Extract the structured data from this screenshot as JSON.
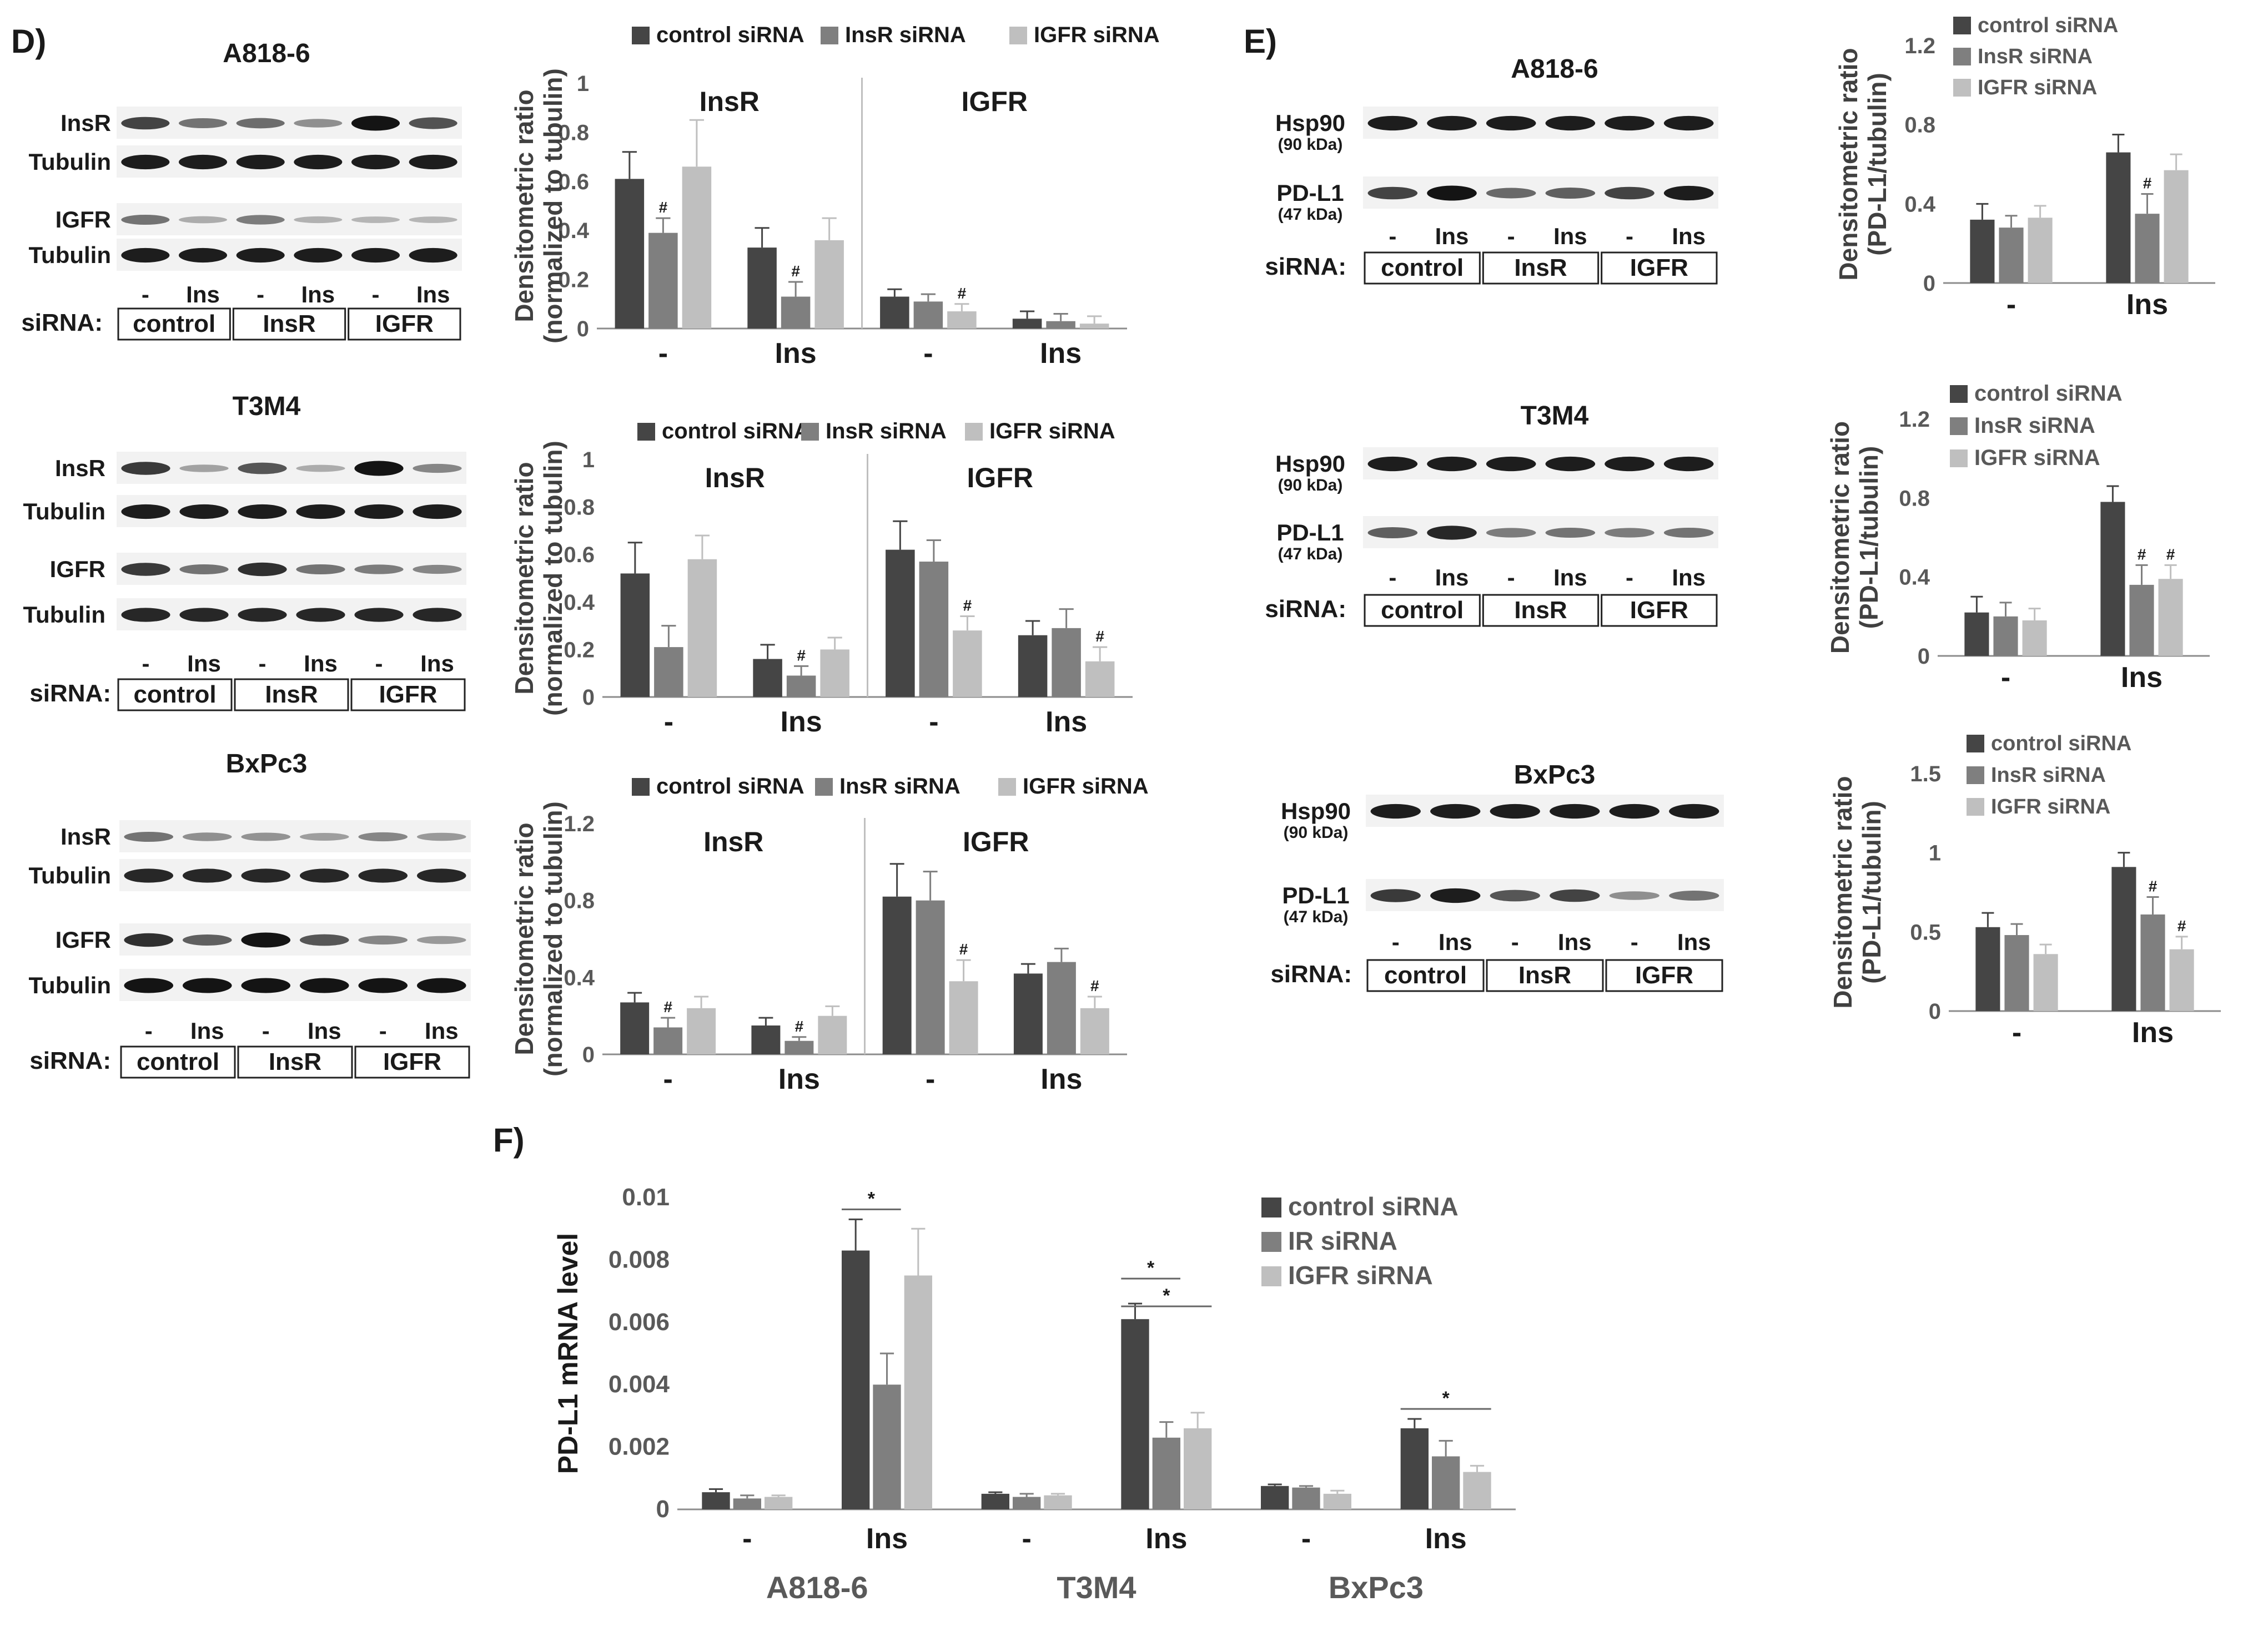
{
  "figure": {
    "panels": {
      "D": "D)",
      "E": "E)",
      "F": "F)"
    }
  },
  "colors": {
    "control": "#454545",
    "insr": "#7f7f7f",
    "igfr": "#bfbfbf",
    "text": "#1a1a1a",
    "axis_text": "#595959"
  },
  "blots_D": [
    {
      "cell_line": "A818-6",
      "rows": [
        {
          "label": "InsR",
          "bands": [
            0.7,
            0.45,
            0.48,
            0.3,
            0.95,
            0.62
          ]
        },
        {
          "label": "Tubulin",
          "bands": [
            0.9,
            0.9,
            0.9,
            0.9,
            0.9,
            0.9
          ]
        },
        {
          "label": "IGFR",
          "bands": [
            0.45,
            0.15,
            0.4,
            0.12,
            0.1,
            0.1
          ]
        },
        {
          "label": "Tubulin",
          "bands": [
            0.9,
            0.9,
            0.9,
            0.9,
            0.9,
            0.9
          ]
        }
      ],
      "lanes": [
        "-",
        "Ins",
        "-",
        "Ins",
        "-",
        "Ins"
      ],
      "sirna_label": "siRNA:",
      "groups": [
        "control",
        "InsR",
        "IGFR"
      ]
    },
    {
      "cell_line": "T3M4",
      "rows": [
        {
          "label": "InsR",
          "bands": [
            0.75,
            0.2,
            0.6,
            0.15,
            0.95,
            0.35
          ]
        },
        {
          "label": "Tubulin",
          "bands": [
            0.9,
            0.9,
            0.9,
            0.9,
            0.9,
            0.9
          ]
        },
        {
          "label": "IGFR",
          "bands": [
            0.75,
            0.45,
            0.8,
            0.45,
            0.4,
            0.35
          ]
        },
        {
          "label": "Tubulin",
          "bands": [
            0.85,
            0.85,
            0.85,
            0.85,
            0.85,
            0.85
          ]
        }
      ],
      "lanes": [
        "-",
        "Ins",
        "-",
        "Ins",
        "-",
        "Ins"
      ],
      "sirna_label": "siRNA:",
      "groups": [
        "control",
        "InsR",
        "IGFR"
      ]
    },
    {
      "cell_line": "BxPc3",
      "rows": [
        {
          "label": "InsR",
          "bands": [
            0.45,
            0.3,
            0.28,
            0.22,
            0.35,
            0.25
          ]
        },
        {
          "label": "Tubulin",
          "bands": [
            0.85,
            0.85,
            0.85,
            0.85,
            0.85,
            0.85
          ]
        },
        {
          "label": "IGFR",
          "bands": [
            0.8,
            0.55,
            0.95,
            0.6,
            0.35,
            0.25
          ]
        },
        {
          "label": "Tubulin",
          "bands": [
            0.95,
            0.95,
            0.95,
            0.95,
            0.95,
            0.95
          ]
        }
      ],
      "lanes": [
        "-",
        "Ins",
        "-",
        "Ins",
        "-",
        "Ins"
      ],
      "sirna_label": "siRNA:",
      "groups": [
        "control",
        "InsR",
        "IGFR"
      ]
    }
  ],
  "blots_E": [
    {
      "cell_line": "A818-6",
      "rows": [
        {
          "label": "Hsp90",
          "sub": "(90 kDa)",
          "bands": [
            0.9,
            0.9,
            0.9,
            0.9,
            0.9,
            0.9
          ]
        },
        {
          "label": "PD-L1",
          "sub": "(47 kDa)",
          "bands": [
            0.7,
            0.95,
            0.5,
            0.55,
            0.7,
            0.9
          ]
        }
      ],
      "lanes": [
        "-",
        "Ins",
        "-",
        "Ins",
        "-",
        "Ins"
      ],
      "sirna_label": "siRNA:",
      "groups": [
        "control",
        "InsR",
        "IGFR"
      ]
    },
    {
      "cell_line": "T3M4",
      "rows": [
        {
          "label": "Hsp90",
          "sub": "(90 kDa)",
          "bands": [
            0.9,
            0.9,
            0.9,
            0.9,
            0.9,
            0.9
          ]
        },
        {
          "label": "PD-L1",
          "sub": "(47 kDa)",
          "bands": [
            0.55,
            0.85,
            0.4,
            0.45,
            0.4,
            0.45
          ]
        }
      ],
      "lanes": [
        "-",
        "Ins",
        "-",
        "Ins",
        "-",
        "Ins"
      ],
      "sirna_label": "siRNA:",
      "groups": [
        "control",
        "InsR",
        "IGFR"
      ]
    },
    {
      "cell_line": "BxPc3",
      "rows": [
        {
          "label": "Hsp90",
          "sub": "(90 kDa)",
          "bands": [
            0.9,
            0.9,
            0.9,
            0.9,
            0.9,
            0.9
          ]
        },
        {
          "label": "PD-L1",
          "sub": "(47 kDa)",
          "bands": [
            0.75,
            0.9,
            0.6,
            0.7,
            0.3,
            0.45
          ]
        }
      ],
      "lanes": [
        "-",
        "Ins",
        "-",
        "Ins",
        "-",
        "Ins"
      ],
      "sirna_label": "siRNA:",
      "groups": [
        "control",
        "InsR",
        "IGFR"
      ]
    }
  ],
  "chart_data": [
    {
      "id": "D-A818-6",
      "type": "bar",
      "cell_line": "A818-6",
      "ylabel": "Densitometric ratio",
      "ylabel2": "(normalized to tubulin)",
      "ylim": [
        0,
        1
      ],
      "yticks": [
        "0",
        "0.2",
        "0.4",
        "0.6",
        "0.8",
        "1"
      ],
      "facets": [
        "InsR",
        "IGFR"
      ],
      "categories": [
        "-",
        "Ins",
        "-",
        "Ins"
      ],
      "legend": [
        "control siRNA",
        "InsR siRNA",
        "IGFR siRNA"
      ],
      "series": [
        {
          "name": "control siRNA",
          "values": [
            0.61,
            0.33,
            0.13,
            0.04
          ],
          "errors": [
            0.11,
            0.08,
            0.03,
            0.03
          ]
        },
        {
          "name": "InsR siRNA",
          "values": [
            0.39,
            0.13,
            0.11,
            0.03
          ],
          "errors": [
            0.06,
            0.06,
            0.03,
            0.03
          ]
        },
        {
          "name": "IGFR siRNA",
          "values": [
            0.66,
            0.36,
            0.07,
            0.02
          ],
          "errors": [
            0.19,
            0.09,
            0.03,
            0.03
          ]
        }
      ],
      "annotations": [
        {
          "series": 1,
          "index": 0,
          "text": "#"
        },
        {
          "series": 1,
          "index": 1,
          "text": "#"
        },
        {
          "series": 2,
          "index": 2,
          "text": "#"
        }
      ]
    },
    {
      "id": "D-T3M4",
      "type": "bar",
      "cell_line": "T3M4",
      "ylabel": "Densitometric ratio",
      "ylabel2": "(normalized to tubulin)",
      "ylim": [
        0,
        1
      ],
      "yticks": [
        "0",
        "0.2",
        "0.4",
        "0.6",
        "0.8",
        "1"
      ],
      "facets": [
        "InsR",
        "IGFR"
      ],
      "categories": [
        "-",
        "Ins",
        "-",
        "Ins"
      ],
      "legend": [
        "control siRNA",
        "InsR siRNA",
        "IGFR siRNA"
      ],
      "series": [
        {
          "name": "control siRNA",
          "values": [
            0.52,
            0.16,
            0.62,
            0.26
          ],
          "errors": [
            0.13,
            0.06,
            0.12,
            0.06
          ]
        },
        {
          "name": "InsR siRNA",
          "values": [
            0.21,
            0.09,
            0.57,
            0.29
          ],
          "errors": [
            0.09,
            0.04,
            0.09,
            0.08
          ]
        },
        {
          "name": "IGFR siRNA",
          "values": [
            0.58,
            0.2,
            0.28,
            0.15
          ],
          "errors": [
            0.1,
            0.05,
            0.06,
            0.06
          ]
        }
      ],
      "annotations": [
        {
          "series": 1,
          "index": 1,
          "text": "#"
        },
        {
          "series": 2,
          "index": 2,
          "text": "#"
        },
        {
          "series": 2,
          "index": 3,
          "text": "#"
        }
      ]
    },
    {
      "id": "D-BxPc3",
      "type": "bar",
      "cell_line": "BxPc3",
      "ylabel": "Densitometric ratio",
      "ylabel2": "(normalized to tubulin)",
      "ylim": [
        0,
        1.2
      ],
      "yticks": [
        "0",
        "0.4",
        "0.8",
        "1.2"
      ],
      "facets": [
        "InsR",
        "IGFR"
      ],
      "categories": [
        "-",
        "Ins",
        "-",
        "Ins"
      ],
      "legend": [
        "control siRNA",
        "InsR siRNA",
        "IGFR siRNA"
      ],
      "series": [
        {
          "name": "control siRNA",
          "values": [
            0.27,
            0.15,
            0.82,
            0.42
          ],
          "errors": [
            0.05,
            0.04,
            0.17,
            0.05
          ]
        },
        {
          "name": "InsR siRNA",
          "values": [
            0.14,
            0.07,
            0.8,
            0.48
          ],
          "errors": [
            0.05,
            0.02,
            0.15,
            0.07
          ]
        },
        {
          "name": "IGFR siRNA",
          "values": [
            0.24,
            0.2,
            0.38,
            0.24
          ],
          "errors": [
            0.06,
            0.05,
            0.11,
            0.06
          ]
        }
      ],
      "annotations": [
        {
          "series": 1,
          "index": 0,
          "text": "#"
        },
        {
          "series": 1,
          "index": 1,
          "text": "#"
        },
        {
          "series": 2,
          "index": 2,
          "text": "#"
        },
        {
          "series": 2,
          "index": 3,
          "text": "#"
        }
      ]
    },
    {
      "id": "E-A818-6",
      "type": "bar",
      "cell_line": "A818-6",
      "ylabel": "Densitometric ratio",
      "ylabel2": "(PD-L1/tubulin)",
      "ylim": [
        0,
        1.2
      ],
      "yticks": [
        "0",
        "0.4",
        "0.8",
        "1.2"
      ],
      "categories": [
        "-",
        "Ins"
      ],
      "legend": [
        "control siRNA",
        "InsR siRNA",
        "IGFR siRNA"
      ],
      "series": [
        {
          "name": "control siRNA",
          "values": [
            0.32,
            0.66
          ],
          "errors": [
            0.08,
            0.09
          ]
        },
        {
          "name": "InsR siRNA",
          "values": [
            0.28,
            0.35
          ],
          "errors": [
            0.06,
            0.1
          ]
        },
        {
          "name": "IGFR siRNA",
          "values": [
            0.33,
            0.57
          ],
          "errors": [
            0.06,
            0.08
          ]
        }
      ],
      "annotations": [
        {
          "series": 1,
          "index": 1,
          "text": "#"
        }
      ]
    },
    {
      "id": "E-T3M4",
      "type": "bar",
      "cell_line": "T3M4",
      "ylabel": "Densitometric ratio",
      "ylabel2": "(PD-L1/tubulin)",
      "ylim": [
        0,
        1.2
      ],
      "yticks": [
        "0",
        "0.4",
        "0.8",
        "1.2"
      ],
      "categories": [
        "-",
        "Ins"
      ],
      "legend": [
        "control siRNA",
        "InsR siRNA",
        "IGFR siRNA"
      ],
      "series": [
        {
          "name": "control siRNA",
          "values": [
            0.22,
            0.78
          ],
          "errors": [
            0.08,
            0.08
          ]
        },
        {
          "name": "InsR siRNA",
          "values": [
            0.2,
            0.36
          ],
          "errors": [
            0.07,
            0.1
          ]
        },
        {
          "name": "IGFR siRNA",
          "values": [
            0.18,
            0.39
          ],
          "errors": [
            0.06,
            0.07
          ]
        }
      ],
      "annotations": [
        {
          "series": 1,
          "index": 1,
          "text": "#"
        },
        {
          "series": 2,
          "index": 1,
          "text": "#"
        }
      ]
    },
    {
      "id": "E-BxPc3",
      "type": "bar",
      "cell_line": "BxPc3",
      "ylabel": "Densitometric ratio",
      "ylabel2": "(PD-L1/tubulin)",
      "ylim": [
        0,
        1.5
      ],
      "yticks": [
        "0",
        "0.5",
        "1",
        "1.5"
      ],
      "categories": [
        "-",
        "Ins"
      ],
      "legend": [
        "control siRNA",
        "InsR siRNA",
        "IGFR siRNA"
      ],
      "series": [
        {
          "name": "control siRNA",
          "values": [
            0.53,
            0.91
          ],
          "errors": [
            0.09,
            0.09
          ]
        },
        {
          "name": "InsR siRNA",
          "values": [
            0.48,
            0.61
          ],
          "errors": [
            0.07,
            0.11
          ]
        },
        {
          "name": "IGFR siRNA",
          "values": [
            0.36,
            0.39
          ],
          "errors": [
            0.06,
            0.08
          ]
        }
      ],
      "annotations": [
        {
          "series": 1,
          "index": 1,
          "text": "#"
        },
        {
          "series": 2,
          "index": 1,
          "text": "#"
        }
      ]
    },
    {
      "id": "F",
      "type": "bar",
      "ylabel": "PD-L1 mRNA level",
      "ylim": [
        0,
        0.01
      ],
      "yticks": [
        "0",
        "0.002",
        "0.004",
        "0.006",
        "0.008",
        "0.01"
      ],
      "categories": [
        "-",
        "Ins",
        "-",
        "Ins",
        "-",
        "Ins"
      ],
      "groups": [
        "A818-6",
        "T3M4",
        "BxPc3"
      ],
      "legend": [
        "control siRNA",
        "IR siRNA",
        "IGFR siRNA"
      ],
      "series": [
        {
          "name": "control siRNA",
          "values": [
            0.00055,
            0.0083,
            0.0005,
            0.0061,
            0.00075,
            0.0026
          ],
          "errors": [
            0.0001,
            0.001,
            5e-05,
            0.0005,
            5e-05,
            0.0003
          ]
        },
        {
          "name": "IR siRNA",
          "values": [
            0.00035,
            0.004,
            0.0004,
            0.0023,
            0.0007,
            0.0017
          ],
          "errors": [
            0.0001,
            0.001,
            0.0001,
            0.0005,
            5e-05,
            0.0005
          ]
        },
        {
          "name": "IGFR siRNA",
          "values": [
            0.0004,
            0.0075,
            0.00045,
            0.0026,
            0.0005,
            0.0012
          ],
          "errors": [
            5e-05,
            0.0015,
            5e-05,
            0.0005,
            0.0001,
            0.0002
          ]
        }
      ],
      "significance": [
        {
          "from": [
            0,
            1
          ],
          "to": [
            1,
            1
          ],
          "text": "*"
        },
        {
          "from": [
            0,
            3
          ],
          "to": [
            1,
            3
          ],
          "text": "*"
        },
        {
          "from": [
            0,
            3
          ],
          "to": [
            2,
            3
          ],
          "text": "*"
        },
        {
          "from": [
            0,
            5
          ],
          "to": [
            2,
            5
          ],
          "text": "*"
        }
      ]
    }
  ]
}
